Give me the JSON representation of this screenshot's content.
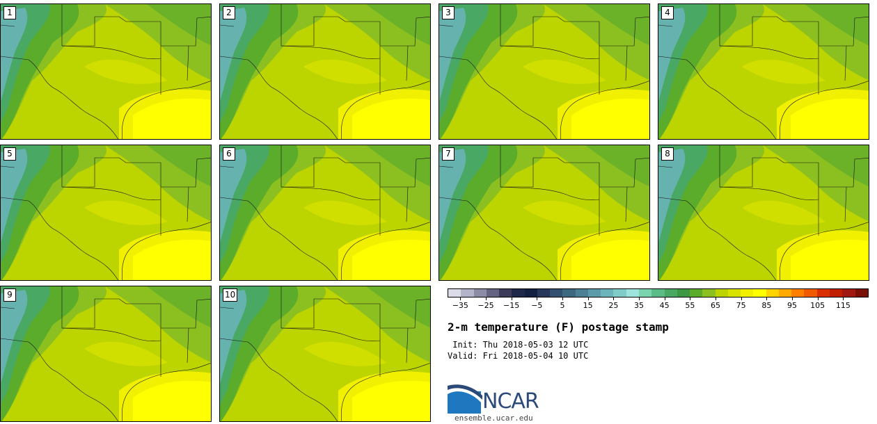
{
  "panels": [
    {
      "label": "1"
    },
    {
      "label": "2"
    },
    {
      "label": "3"
    },
    {
      "label": "4"
    },
    {
      "label": "5"
    },
    {
      "label": "6"
    },
    {
      "label": "7"
    },
    {
      "label": "8"
    },
    {
      "label": "9"
    },
    {
      "label": "10"
    }
  ],
  "colorbar": {
    "colors": [
      "#dcdce8",
      "#b4b4c8",
      "#8c8ca4",
      "#646482",
      "#3c3c5a",
      "#20284a",
      "#142040",
      "#28385a",
      "#345070",
      "#3c6880",
      "#4c8094",
      "#5c9caa",
      "#6cb4bc",
      "#80ccc8",
      "#9ce4dc",
      "#7ad4b0",
      "#5cbc88",
      "#48a864",
      "#3c9844",
      "#5cac2c",
      "#8cc020",
      "#bcd400",
      "#d8e400",
      "#f0f000",
      "#ffff00",
      "#ffd400",
      "#ffaa00",
      "#ff8000",
      "#f05a00",
      "#d83000",
      "#c02000",
      "#a01810",
      "#781008"
    ],
    "ticks": [
      "−35",
      "−25",
      "−15",
      "−5",
      "5",
      "15",
      "25",
      "35",
      "45",
      "55",
      "65",
      "75",
      "85",
      "95",
      "105",
      "115"
    ]
  },
  "title": "2-m temperature (F) postage stamp",
  "init": " Init: Thu 2018-05-03 12 UTC",
  "valid": "Valid: Fri 2018-05-04 10 UTC",
  "logo": {
    "text": "NCAR",
    "icon": "ncar-logo-icon"
  },
  "site": "ensemble.ucar.edu"
}
